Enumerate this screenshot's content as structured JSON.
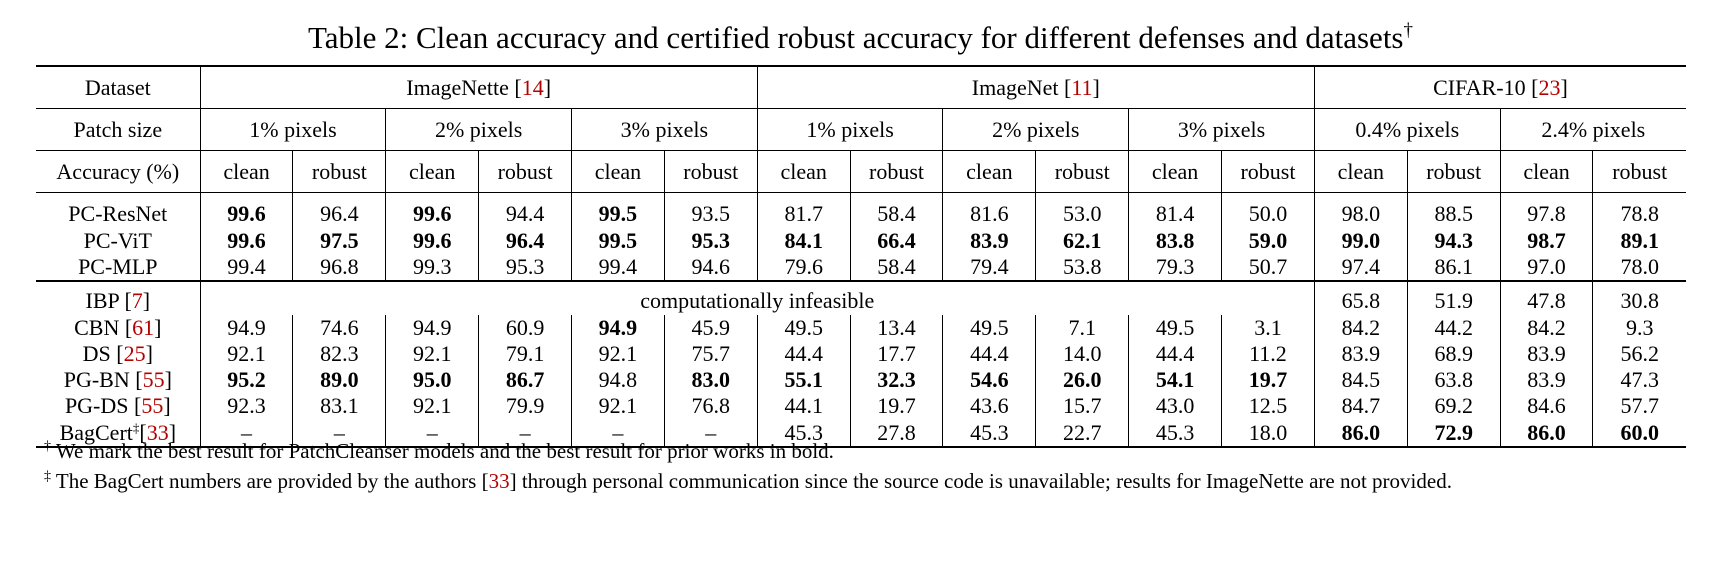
{
  "caption": {
    "text": "Table 2: Clean accuracy and certified robust accuracy for different defenses and datasets",
    "mark": "†"
  },
  "header": {
    "dataset_label": "Dataset",
    "datasets": [
      {
        "name": "ImageNette",
        "ref": "14"
      },
      {
        "name": "ImageNet",
        "ref": "11"
      },
      {
        "name": "CIFAR-10",
        "ref": "23"
      }
    ],
    "patch_label": "Patch size",
    "patch_sizes": [
      "1% pixels",
      "2% pixels",
      "3% pixels",
      "1% pixels",
      "2% pixels",
      "3% pixels",
      "0.4% pixels",
      "2.4% pixels"
    ],
    "accuracy_label": "Accuracy (%)",
    "clean": "clean",
    "robust": "robust"
  },
  "pc_rows": [
    {
      "name": "PC-ResNet",
      "ref": "",
      "mark": "",
      "cells": [
        [
          "99.6",
          true
        ],
        [
          "96.4",
          false
        ],
        [
          "99.6",
          true
        ],
        [
          "94.4",
          false
        ],
        [
          "99.5",
          true
        ],
        [
          "93.5",
          false
        ],
        [
          "81.7",
          false
        ],
        [
          "58.4",
          false
        ],
        [
          "81.6",
          false
        ],
        [
          "53.0",
          false
        ],
        [
          "81.4",
          false
        ],
        [
          "50.0",
          false
        ],
        [
          "98.0",
          false
        ],
        [
          "88.5",
          false
        ],
        [
          "97.8",
          false
        ],
        [
          "78.8",
          false
        ]
      ]
    },
    {
      "name": "PC-ViT",
      "ref": "",
      "mark": "",
      "cells": [
        [
          "99.6",
          true
        ],
        [
          "97.5",
          true
        ],
        [
          "99.6",
          true
        ],
        [
          "96.4",
          true
        ],
        [
          "99.5",
          true
        ],
        [
          "95.3",
          true
        ],
        [
          "84.1",
          true
        ],
        [
          "66.4",
          true
        ],
        [
          "83.9",
          true
        ],
        [
          "62.1",
          true
        ],
        [
          "83.8",
          true
        ],
        [
          "59.0",
          true
        ],
        [
          "99.0",
          true
        ],
        [
          "94.3",
          true
        ],
        [
          "98.7",
          true
        ],
        [
          "89.1",
          true
        ]
      ]
    },
    {
      "name": "PC-MLP",
      "ref": "",
      "mark": "",
      "cells": [
        [
          "99.4",
          false
        ],
        [
          "96.8",
          false
        ],
        [
          "99.3",
          false
        ],
        [
          "95.3",
          false
        ],
        [
          "99.4",
          false
        ],
        [
          "94.6",
          false
        ],
        [
          "79.6",
          false
        ],
        [
          "58.4",
          false
        ],
        [
          "79.4",
          false
        ],
        [
          "53.8",
          false
        ],
        [
          "79.3",
          false
        ],
        [
          "50.7",
          false
        ],
        [
          "97.4",
          false
        ],
        [
          "86.1",
          false
        ],
        [
          "97.0",
          false
        ],
        [
          "78.0",
          false
        ]
      ]
    }
  ],
  "ibp_row": {
    "name": "IBP",
    "ref": "7",
    "infeasible_text": "computationally infeasible",
    "cifar_cells": [
      [
        "65.8",
        false
      ],
      [
        "51.9",
        false
      ],
      [
        "47.8",
        false
      ],
      [
        "30.8",
        false
      ]
    ]
  },
  "prior_rows": [
    {
      "name": "CBN",
      "ref": "61",
      "mark": "",
      "cells": [
        [
          "94.9",
          false
        ],
        [
          "74.6",
          false
        ],
        [
          "94.9",
          false
        ],
        [
          "60.9",
          false
        ],
        [
          "94.9",
          true
        ],
        [
          "45.9",
          false
        ],
        [
          "49.5",
          false
        ],
        [
          "13.4",
          false
        ],
        [
          "49.5",
          false
        ],
        [
          "7.1",
          false
        ],
        [
          "49.5",
          false
        ],
        [
          "3.1",
          false
        ],
        [
          "84.2",
          false
        ],
        [
          "44.2",
          false
        ],
        [
          "84.2",
          false
        ],
        [
          "9.3",
          false
        ]
      ]
    },
    {
      "name": "DS",
      "ref": "25",
      "mark": "",
      "cells": [
        [
          "92.1",
          false
        ],
        [
          "82.3",
          false
        ],
        [
          "92.1",
          false
        ],
        [
          "79.1",
          false
        ],
        [
          "92.1",
          false
        ],
        [
          "75.7",
          false
        ],
        [
          "44.4",
          false
        ],
        [
          "17.7",
          false
        ],
        [
          "44.4",
          false
        ],
        [
          "14.0",
          false
        ],
        [
          "44.4",
          false
        ],
        [
          "11.2",
          false
        ],
        [
          "83.9",
          false
        ],
        [
          "68.9",
          false
        ],
        [
          "83.9",
          false
        ],
        [
          "56.2",
          false
        ]
      ]
    },
    {
      "name": "PG-BN",
      "ref": "55",
      "mark": "",
      "cells": [
        [
          "95.2",
          true
        ],
        [
          "89.0",
          true
        ],
        [
          "95.0",
          true
        ],
        [
          "86.7",
          true
        ],
        [
          "94.8",
          false
        ],
        [
          "83.0",
          true
        ],
        [
          "55.1",
          true
        ],
        [
          "32.3",
          true
        ],
        [
          "54.6",
          true
        ],
        [
          "26.0",
          true
        ],
        [
          "54.1",
          true
        ],
        [
          "19.7",
          true
        ],
        [
          "84.5",
          false
        ],
        [
          "63.8",
          false
        ],
        [
          "83.9",
          false
        ],
        [
          "47.3",
          false
        ]
      ]
    },
    {
      "name": "PG-DS",
      "ref": "55",
      "mark": "",
      "cells": [
        [
          "92.3",
          false
        ],
        [
          "83.1",
          false
        ],
        [
          "92.1",
          false
        ],
        [
          "79.9",
          false
        ],
        [
          "92.1",
          false
        ],
        [
          "76.8",
          false
        ],
        [
          "44.1",
          false
        ],
        [
          "19.7",
          false
        ],
        [
          "43.6",
          false
        ],
        [
          "15.7",
          false
        ],
        [
          "43.0",
          false
        ],
        [
          "12.5",
          false
        ],
        [
          "84.7",
          false
        ],
        [
          "69.2",
          false
        ],
        [
          "84.6",
          false
        ],
        [
          "57.7",
          false
        ]
      ]
    },
    {
      "name": "BagCert",
      "ref": "33",
      "mark": "‡",
      "cells": [
        [
          "–",
          false
        ],
        [
          "–",
          false
        ],
        [
          "–",
          false
        ],
        [
          "–",
          false
        ],
        [
          "–",
          false
        ],
        [
          "–",
          false
        ],
        [
          "45.3",
          false
        ],
        [
          "27.8",
          false
        ],
        [
          "45.3",
          false
        ],
        [
          "22.7",
          false
        ],
        [
          "45.3",
          false
        ],
        [
          "18.0",
          false
        ],
        [
          "86.0",
          true
        ],
        [
          "72.9",
          true
        ],
        [
          "86.0",
          true
        ],
        [
          "60.0",
          true
        ]
      ]
    }
  ],
  "footnotes": [
    {
      "mark": "†",
      "text": "We mark the best result for PatchCleanser models and the best result for prior works in bold.",
      "ref": "",
      "text_after": ""
    },
    {
      "mark": "‡",
      "text": "The BagCert numbers are provided by the authors [",
      "ref": "33",
      "text_after": "] through personal communication since the source code is unavailable; results for ImageNette are not provided."
    }
  ]
}
